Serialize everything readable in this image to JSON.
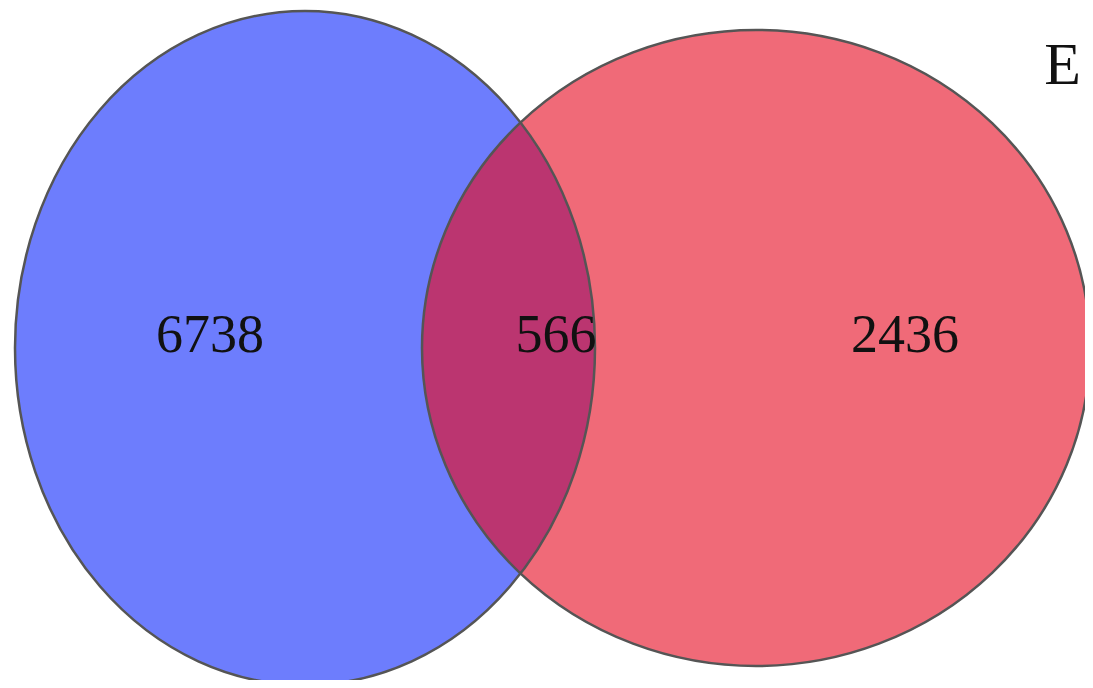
{
  "chart_data": {
    "type": "other",
    "categories": [
      null,
      null,
      null
    ],
    "values": [
      6738,
      566,
      2436
    ],
    "colors": [
      "#6d7dfd",
      "#bb3570",
      "#f06a78"
    ],
    "annotations": [
      "E"
    ],
    "data_labels": true
  }
}
